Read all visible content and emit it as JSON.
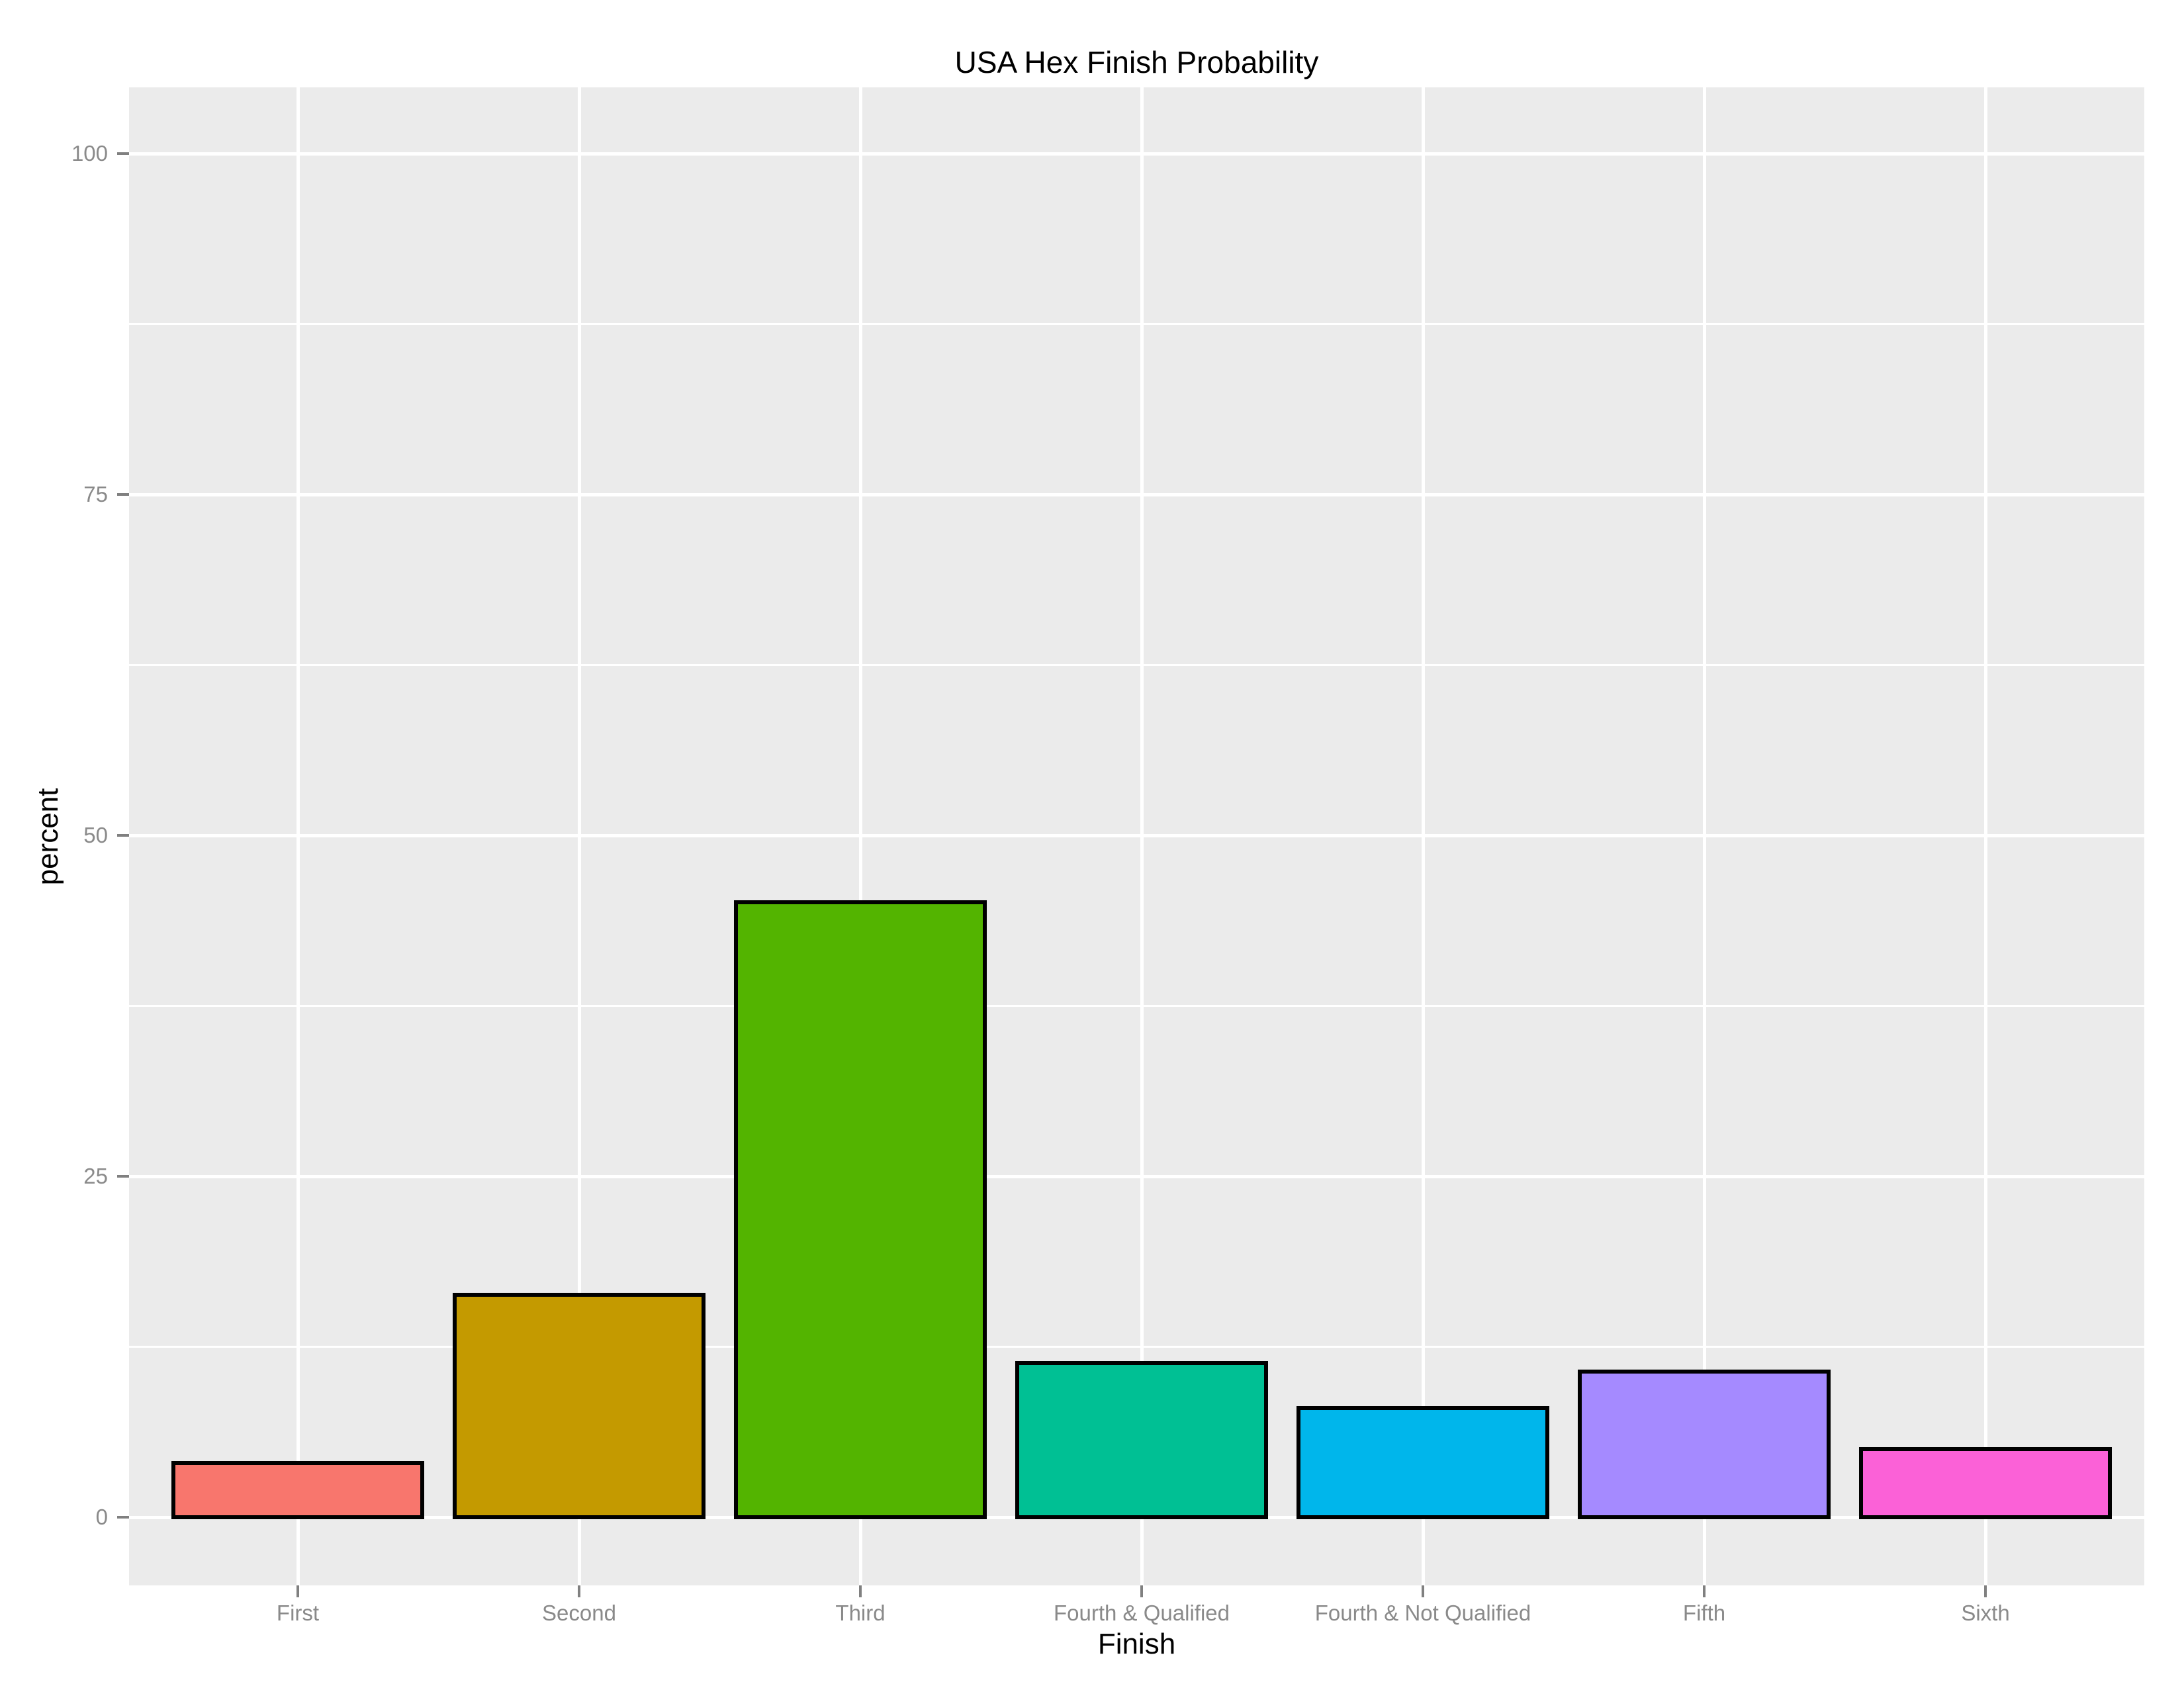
{
  "chart_data": {
    "type": "bar",
    "title": "USA Hex Finish Probability",
    "xlabel": "Finish",
    "ylabel": "percent",
    "categories": [
      "First",
      "Second",
      "Third",
      "Fourth & Qualified",
      "Fourth & Not Qualified",
      "Fifth",
      "Sixth"
    ],
    "values": [
      4,
      16.3,
      45.1,
      11.3,
      8,
      10.7,
      5
    ],
    "bar_colors": [
      "#F8766D",
      "#C49A00",
      "#53B400",
      "#00C094",
      "#00B6EB",
      "#A58AFF",
      "#FB61D7"
    ],
    "bar_outline_color": "#000000",
    "y_ticks": [
      0,
      25,
      50,
      75,
      100
    ],
    "y_minor_ticks": [
      12.5,
      37.5,
      62.5,
      87.5
    ],
    "ylim": [
      0,
      100
    ],
    "grid": true,
    "legend": "none",
    "panel_background": "#EBEBEB",
    "grid_color": "#FFFFFF",
    "axis_text_color": "#8A8A8A",
    "tick_mark_color": "#808080",
    "title_color": "#000000"
  }
}
